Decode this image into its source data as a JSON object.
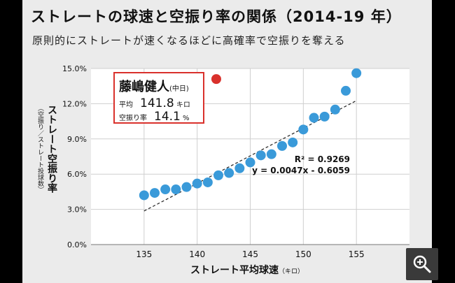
{
  "title": "ストレートの球速と空振り率の関係（2014-19 年）",
  "subtitle": "原則的にストレートが速くなるほどに高確率で空振りを奪える",
  "chart_data": {
    "type": "scatter",
    "ylabel": "ストレート空振り率",
    "ylabel_sub": "（空振り／ストレート投球数）",
    "xlabel": "ストレート平均球速",
    "xlabel_unit": "（キロ）",
    "x_ticks": [
      "135",
      "140",
      "145",
      "150",
      "155"
    ],
    "y_ticks": [
      "0.0%",
      "3.0%",
      "6.0%",
      "9.0%",
      "12.0%",
      "15.0%"
    ],
    "xlim": [
      130,
      160
    ],
    "ylim": [
      0,
      15
    ],
    "grid": true,
    "points": [
      {
        "x": 135.0,
        "y": 4.2
      },
      {
        "x": 136.0,
        "y": 4.4
      },
      {
        "x": 137.0,
        "y": 4.7
      },
      {
        "x": 138.0,
        "y": 4.7
      },
      {
        "x": 139.0,
        "y": 4.9
      },
      {
        "x": 140.0,
        "y": 5.2
      },
      {
        "x": 141.0,
        "y": 5.3
      },
      {
        "x": 142.0,
        "y": 5.9
      },
      {
        "x": 143.0,
        "y": 6.1
      },
      {
        "x": 144.0,
        "y": 6.5
      },
      {
        "x": 145.0,
        "y": 7.0
      },
      {
        "x": 146.0,
        "y": 7.6
      },
      {
        "x": 147.0,
        "y": 7.7
      },
      {
        "x": 148.0,
        "y": 8.4
      },
      {
        "x": 149.0,
        "y": 8.7
      },
      {
        "x": 150.0,
        "y": 9.8
      },
      {
        "x": 151.0,
        "y": 10.8
      },
      {
        "x": 152.0,
        "y": 10.9
      },
      {
        "x": 153.0,
        "y": 11.5
      },
      {
        "x": 154.0,
        "y": 13.1
      },
      {
        "x": 155.0,
        "y": 14.6
      }
    ],
    "highlight": {
      "x": 141.8,
      "y": 14.1
    },
    "trendline": {
      "slope": 0.0047,
      "intercept": -0.6059,
      "x_range": [
        135,
        155
      ]
    },
    "equation_r2": "R² = 0.9269",
    "equation_fit": "y = 0.0047x - 0.6059",
    "colors": {
      "point": "#3a9ad9",
      "highlight": "#d9312c",
      "callout_border": "#d9312c"
    }
  },
  "callout": {
    "name": "藤嶋健人",
    "team": "(中日)",
    "speed_label": "平均",
    "speed_value": "141.8",
    "speed_unit": "キロ",
    "whiff_label": "空振り率",
    "whiff_value": "14.1",
    "whiff_unit": "%"
  },
  "zoom_icon": "zoom-in-icon"
}
